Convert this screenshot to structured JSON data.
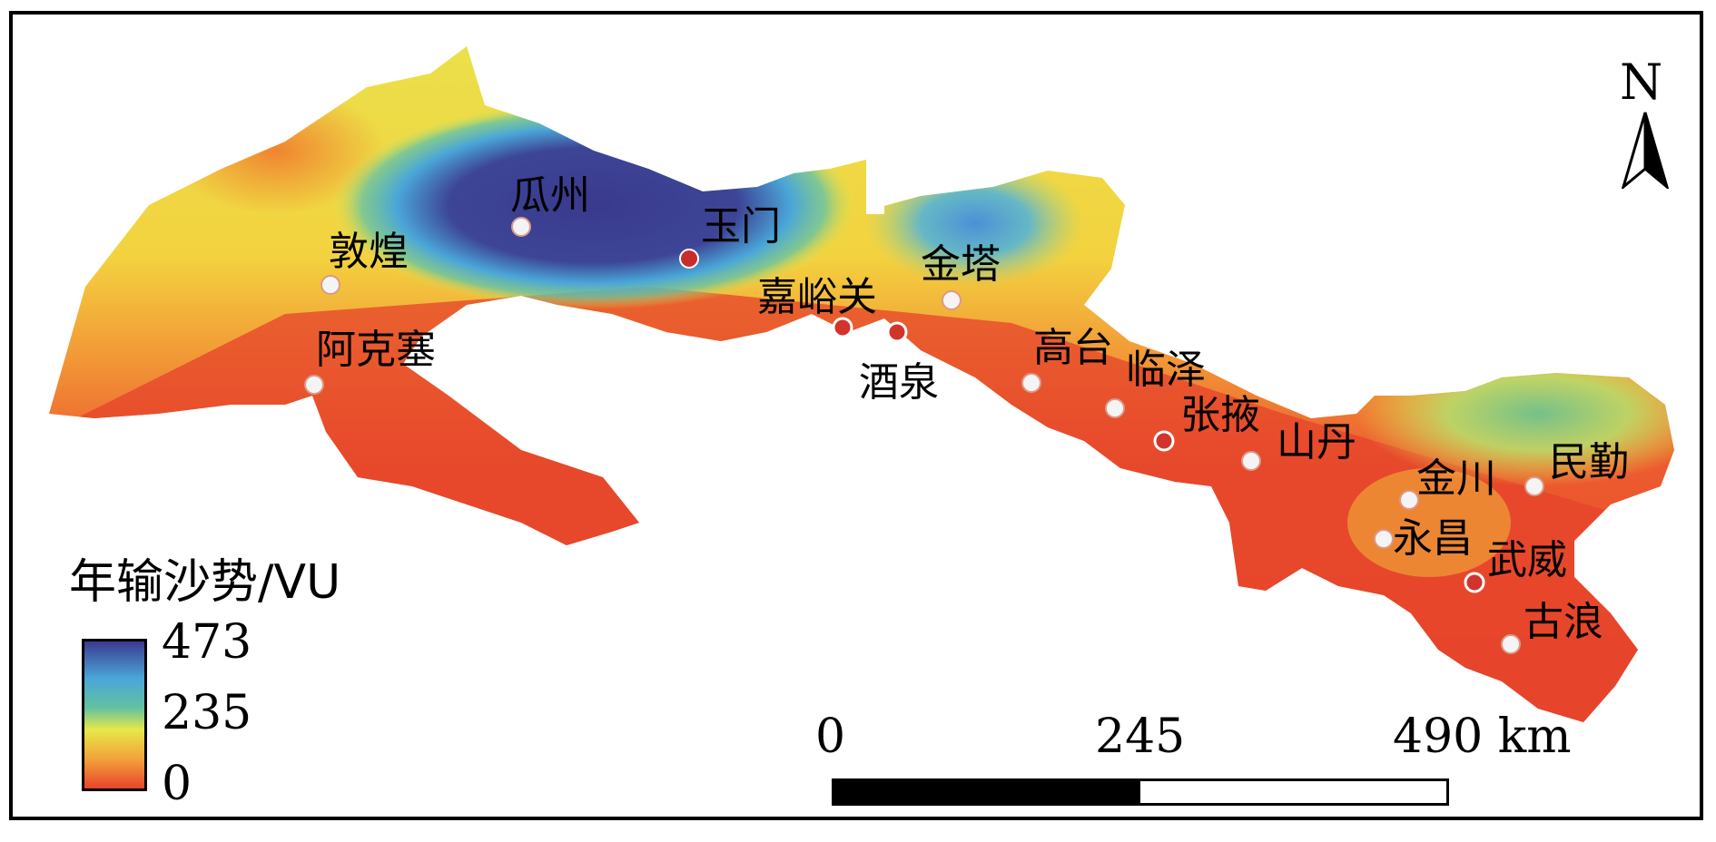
{
  "legend": {
    "title": "年输沙势/VU",
    "max_label": "473",
    "mid_label": "235",
    "min_label": "0",
    "max_value": 473,
    "mid_value": 235,
    "min_value": 0,
    "colors": [
      "#3b3a8f",
      "#4aa6d8",
      "#62c1a0",
      "#e7e84a",
      "#f2a23a",
      "#e8442c"
    ]
  },
  "scale_bar": {
    "tick_0": "0",
    "tick_1": "245",
    "tick_2": "490 km"
  },
  "north_arrow": {
    "label": "N"
  },
  "cities": [
    {
      "name": "瓜州"
    },
    {
      "name": "敦煌"
    },
    {
      "name": "玉门"
    },
    {
      "name": "阿克塞"
    },
    {
      "name": "嘉峪关"
    },
    {
      "name": "金塔"
    },
    {
      "name": "酒泉"
    },
    {
      "name": "高台"
    },
    {
      "name": "临泽"
    },
    {
      "name": "张掖"
    },
    {
      "name": "山丹"
    },
    {
      "name": "金川"
    },
    {
      "name": "民勤"
    },
    {
      "name": "永昌"
    },
    {
      "name": "武威"
    },
    {
      "name": "古浪"
    }
  ]
}
